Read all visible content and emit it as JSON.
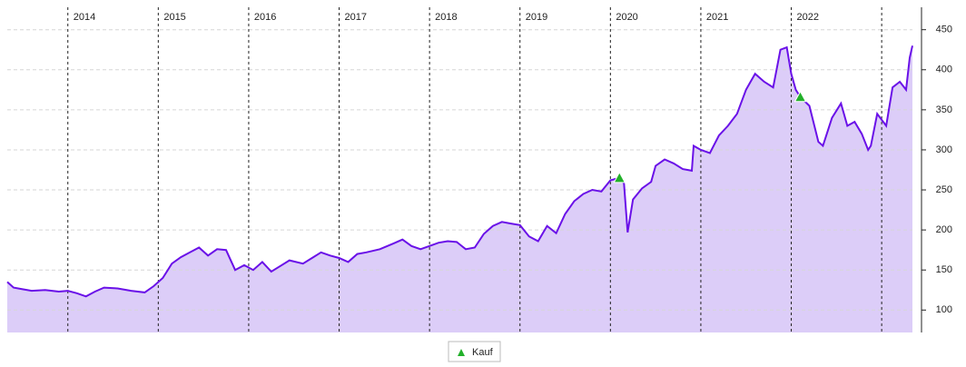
{
  "chart_data": {
    "type": "area",
    "x": [
      2013.33,
      2013.4,
      2013.5,
      2013.6,
      2013.75,
      2013.9,
      2014.0,
      2014.1,
      2014.2,
      2014.3,
      2014.4,
      2014.55,
      2014.7,
      2014.85,
      2014.95,
      2015.05,
      2015.15,
      2015.25,
      2015.35,
      2015.45,
      2015.55,
      2015.65,
      2015.75,
      2015.85,
      2015.95,
      2016.05,
      2016.15,
      2016.25,
      2016.35,
      2016.45,
      2016.6,
      2016.7,
      2016.8,
      2016.9,
      2017.0,
      2017.1,
      2017.2,
      2017.3,
      2017.45,
      2017.6,
      2017.7,
      2017.8,
      2017.9,
      2018.0,
      2018.1,
      2018.2,
      2018.3,
      2018.4,
      2018.5,
      2018.6,
      2018.7,
      2018.8,
      2018.9,
      2019.0,
      2019.1,
      2019.2,
      2019.3,
      2019.4,
      2019.5,
      2019.6,
      2019.7,
      2019.8,
      2019.9,
      2020.0,
      2020.1,
      2020.15,
      2020.19,
      2020.25,
      2020.35,
      2020.45,
      2020.5,
      2020.6,
      2020.7,
      2020.8,
      2020.9,
      2020.92,
      2021.0,
      2021.1,
      2021.2,
      2021.3,
      2021.4,
      2021.5,
      2021.6,
      2021.7,
      2021.8,
      2021.88,
      2021.95,
      2022.0,
      2022.05,
      2022.1,
      2022.2,
      2022.3,
      2022.35,
      2022.45,
      2022.55,
      2022.62,
      2022.7,
      2022.78,
      2022.85,
      2022.88,
      2022.95,
      2023.05,
      2023.12,
      2023.2,
      2023.27,
      2023.31,
      2023.34
    ],
    "values": [
      135,
      128,
      126,
      124,
      125,
      123,
      124,
      121,
      117,
      123,
      128,
      127,
      124,
      122,
      130,
      140,
      158,
      166,
      172,
      178,
      168,
      176,
      175,
      150,
      156,
      150,
      160,
      148,
      155,
      162,
      158,
      165,
      172,
      168,
      165,
      160,
      170,
      172,
      176,
      183,
      188,
      180,
      176,
      180,
      184,
      186,
      185,
      176,
      178,
      195,
      205,
      210,
      208,
      206,
      192,
      186,
      205,
      196,
      220,
      236,
      245,
      250,
      248,
      262,
      265,
      258,
      197,
      238,
      252,
      260,
      280,
      288,
      283,
      276,
      274,
      305,
      300,
      296,
      318,
      330,
      345,
      375,
      395,
      385,
      378,
      425,
      428,
      395,
      375,
      366,
      355,
      310,
      305,
      340,
      358,
      330,
      335,
      320,
      300,
      305,
      345,
      330,
      378,
      385,
      375,
      415,
      430
    ],
    "color": "#6a11e8",
    "fill": "#dccdf8",
    "xlim": [
      2013.33,
      2023.34
    ],
    "xticks": [
      2014,
      2015,
      2016,
      2017,
      2018,
      2019,
      2020,
      2021,
      2022
    ],
    "xgrid": [
      2014,
      2015,
      2016,
      2017,
      2018,
      2019,
      2020,
      2021,
      2022,
      2023
    ],
    "ylim": [
      72,
      478
    ],
    "yticks": [
      100,
      150,
      200,
      250,
      300,
      350,
      400,
      450
    ],
    "grid": true,
    "markers": {
      "name": "Kauf",
      "color": "#22b02a",
      "x": [
        2020.1,
        2022.1
      ],
      "values": [
        265,
        366
      ]
    }
  }
}
